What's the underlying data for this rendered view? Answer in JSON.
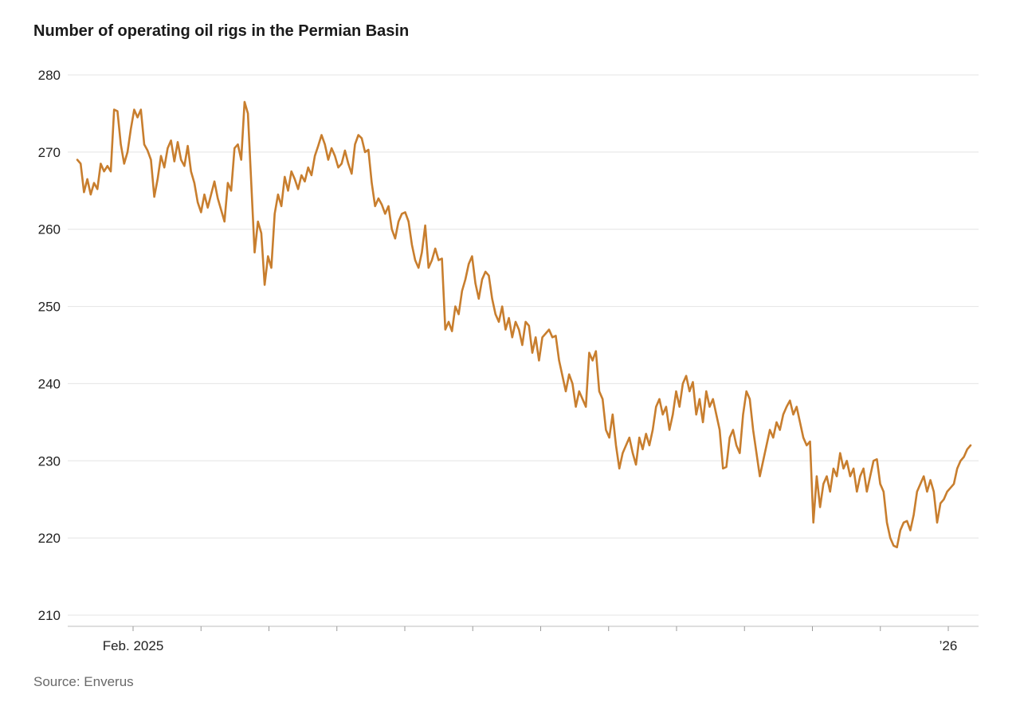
{
  "chart_data": {
    "type": "line",
    "title": "Number of operating oil rigs in the Permian Basin",
    "source_label": "Source: Enverus",
    "xlabel": "",
    "ylabel": "",
    "ylim": [
      210,
      280
    ],
    "yticks": [
      210,
      220,
      230,
      240,
      250,
      260,
      270,
      280
    ],
    "grid": true,
    "legend": "none",
    "colors": {
      "line": "#C87E2E",
      "grid": "#E4E4E4",
      "axis": "#BDBDBD",
      "tick": "#9B9B9B",
      "text": "#222222"
    },
    "x_axis": {
      "tick_count": 13,
      "labels": [
        {
          "text": "Feb. 2025",
          "tick_index": 0
        },
        {
          "text": "’26",
          "tick_index": 12
        }
      ]
    },
    "values": [
      269,
      268.5,
      264.8,
      266.5,
      264.5,
      266,
      265.2,
      268.5,
      267.5,
      268.2,
      267.5,
      275.5,
      275.3,
      271,
      268.5,
      270,
      273,
      275.5,
      274.5,
      275.5,
      271,
      270.2,
      269,
      264.2,
      266.5,
      269.5,
      268,
      270.5,
      271.5,
      268.8,
      271.3,
      269,
      268.2,
      270.8,
      267.5,
      266,
      263.5,
      262.2,
      264.5,
      262.8,
      264.5,
      266.2,
      264,
      262.5,
      261,
      266,
      265,
      270.5,
      271,
      269,
      276.5,
      275,
      266,
      257,
      261,
      259.5,
      252.8,
      256.5,
      255,
      262,
      264.5,
      263,
      266.8,
      265,
      267.5,
      266.5,
      265.2,
      267,
      266.2,
      268,
      267,
      269.5,
      270.8,
      272.2,
      271,
      269,
      270.5,
      269.5,
      268,
      268.5,
      270.2,
      268.5,
      267.2,
      271,
      272.2,
      271.8,
      270,
      270.3,
      266,
      263,
      264,
      263.2,
      262,
      263,
      260,
      258.8,
      261,
      262,
      262.2,
      261,
      258,
      256,
      255,
      257,
      260.5,
      255,
      256,
      257.5,
      256,
      256.2,
      247,
      248,
      246.8,
      250,
      249,
      252,
      253.5,
      255.5,
      256.5,
      253,
      251,
      253.5,
      254.5,
      254,
      251,
      249,
      248,
      250,
      247,
      248.5,
      246,
      248,
      247,
      245,
      248,
      247.5,
      244,
      246,
      243,
      246,
      246.5,
      247,
      246,
      246.2,
      243,
      241,
      239,
      241.2,
      240,
      237,
      239,
      238,
      237,
      244,
      243,
      244.2,
      239,
      238,
      234,
      233,
      236,
      232,
      229,
      231,
      232,
      233,
      231,
      229.5,
      233,
      231.5,
      233.5,
      232,
      234,
      237,
      238,
      236,
      237,
      234,
      236,
      239,
      237,
      240,
      241,
      239,
      240.2,
      236,
      238,
      235,
      239,
      237,
      238,
      236,
      234,
      229,
      229.2,
      233,
      234,
      232,
      231,
      236,
      239,
      238,
      234,
      231,
      228,
      230,
      232,
      234,
      233,
      235,
      234,
      236,
      237,
      237.8,
      236,
      237,
      235,
      233,
      232,
      232.5,
      222,
      228,
      224,
      227,
      228,
      226,
      229,
      228,
      231,
      229,
      230,
      228,
      229,
      226,
      228,
      229,
      226,
      228,
      230,
      230.2,
      227,
      226,
      222,
      220,
      219,
      218.8,
      221,
      222,
      222.2,
      221,
      223,
      226,
      227,
      228,
      226,
      227.5,
      226,
      222,
      224.5,
      225,
      226,
      226.5,
      227,
      229,
      230,
      230.5,
      231.5,
      232
    ]
  }
}
